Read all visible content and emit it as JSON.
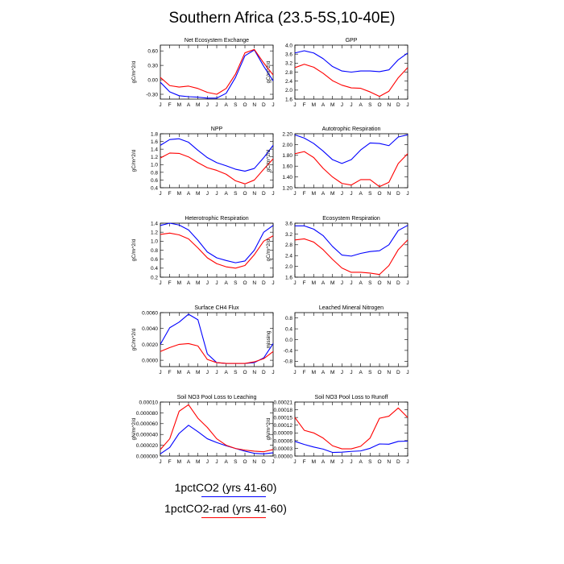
{
  "title": "Southern Africa (23.5-5S,10-40E)",
  "legend": {
    "series1": "1pctCO2 (yrs 41-60)",
    "series2": "1pctCO2-rad (yrs 41-60)"
  },
  "colors": {
    "series1": "#0000ff",
    "series2": "#ff0000"
  },
  "chart_data": [
    {
      "type": "line",
      "title": "Net Ecosystem Exchange",
      "ylabel": "gC/m^2/d",
      "categories": [
        "J",
        "F",
        "M",
        "A",
        "M",
        "J",
        "J",
        "A",
        "S",
        "O",
        "N",
        "D",
        "J"
      ],
      "ylim": [
        -0.4,
        0.72
      ],
      "yticks": [
        "0.60",
        "0.30",
        "0.00",
        "-0.30"
      ],
      "series": [
        {
          "name": "1pctCO2 (yrs 41-60)",
          "values": [
            -0.05,
            -0.25,
            -0.33,
            -0.35,
            -0.36,
            -0.38,
            -0.38,
            -0.28,
            0.05,
            0.5,
            0.62,
            0.28,
            -0.02
          ]
        },
        {
          "name": "1pctCO2-rad (yrs 41-60)",
          "values": [
            0.05,
            -0.12,
            -0.15,
            -0.13,
            -0.18,
            -0.26,
            -0.3,
            -0.18,
            0.12,
            0.56,
            0.63,
            0.35,
            0.1
          ]
        }
      ]
    },
    {
      "type": "line",
      "title": "GPP",
      "ylabel": "gC/m^2/d",
      "categories": [
        "J",
        "F",
        "M",
        "A",
        "M",
        "J",
        "J",
        "A",
        "S",
        "O",
        "N",
        "D",
        "J"
      ],
      "ylim": [
        1.6,
        4.0
      ],
      "yticks": [
        "4.0",
        "3.6",
        "3.2",
        "2.8",
        "2.4",
        "2.0",
        "1.6"
      ],
      "series": [
        {
          "name": "1pctCO2 (yrs 41-60)",
          "values": [
            3.65,
            3.75,
            3.65,
            3.4,
            3.05,
            2.85,
            2.8,
            2.85,
            2.85,
            2.82,
            2.9,
            3.35,
            3.65
          ]
        },
        {
          "name": "1pctCO2-rad (yrs 41-60)",
          "values": [
            3.0,
            3.15,
            3.02,
            2.75,
            2.42,
            2.22,
            2.1,
            2.08,
            1.92,
            1.72,
            1.95,
            2.55,
            3.0
          ]
        }
      ]
    },
    {
      "type": "line",
      "title": "NPP",
      "ylabel": "gC/m^2/d",
      "categories": [
        "J",
        "F",
        "M",
        "A",
        "M",
        "J",
        "J",
        "A",
        "S",
        "O",
        "N",
        "D",
        "J"
      ],
      "ylim": [
        0.4,
        1.8
      ],
      "yticks": [
        "1.8",
        "1.6",
        "1.4",
        "1.2",
        "1.0",
        "0.8",
        "0.6",
        "0.4"
      ],
      "series": [
        {
          "name": "1pctCO2 (yrs 41-60)",
          "values": [
            1.5,
            1.65,
            1.67,
            1.58,
            1.37,
            1.18,
            1.05,
            0.97,
            0.88,
            0.83,
            0.9,
            1.18,
            1.5
          ]
        },
        {
          "name": "1pctCO2-rad (yrs 41-60)",
          "values": [
            1.17,
            1.3,
            1.29,
            1.2,
            1.05,
            0.92,
            0.85,
            0.75,
            0.58,
            0.5,
            0.6,
            0.88,
            1.15
          ]
        }
      ]
    },
    {
      "type": "line",
      "title": "Autotrophic Respiration",
      "ylabel": "gC/m^2/d",
      "categories": [
        "J",
        "F",
        "M",
        "A",
        "M",
        "J",
        "J",
        "A",
        "S",
        "O",
        "N",
        "D",
        "J"
      ],
      "ylim": [
        1.2,
        2.2
      ],
      "yticks": [
        "2.20",
        "2.00",
        "1.80",
        "1.60",
        "1.40",
        "1.20"
      ],
      "series": [
        {
          "name": "1pctCO2 (yrs 41-60)",
          "values": [
            2.18,
            2.12,
            2.02,
            1.88,
            1.72,
            1.65,
            1.72,
            1.9,
            2.03,
            2.02,
            1.98,
            2.14,
            2.18
          ]
        },
        {
          "name": "1pctCO2-rad (yrs 41-60)",
          "values": [
            1.83,
            1.87,
            1.76,
            1.56,
            1.4,
            1.28,
            1.25,
            1.35,
            1.35,
            1.22,
            1.3,
            1.65,
            1.83
          ]
        }
      ]
    },
    {
      "type": "line",
      "title": "Heterotrophic Respiration",
      "ylabel": "gC/m^2/d",
      "categories": [
        "J",
        "F",
        "M",
        "A",
        "M",
        "J",
        "J",
        "A",
        "S",
        "O",
        "N",
        "D",
        "J"
      ],
      "ylim": [
        0.2,
        1.4
      ],
      "yticks": [
        "1.4",
        "1.2",
        "1.0",
        "0.8",
        "0.6",
        "0.4",
        "0.2"
      ],
      "series": [
        {
          "name": "1pctCO2 (yrs 41-60)",
          "values": [
            1.35,
            1.4,
            1.36,
            1.25,
            1.02,
            0.76,
            0.63,
            0.57,
            0.52,
            0.56,
            0.8,
            1.2,
            1.35
          ]
        },
        {
          "name": "1pctCO2-rad (yrs 41-60)",
          "values": [
            1.15,
            1.18,
            1.14,
            1.05,
            0.85,
            0.63,
            0.5,
            0.43,
            0.4,
            0.46,
            0.7,
            1.0,
            1.12
          ]
        }
      ]
    },
    {
      "type": "line",
      "title": "Ecosystem Respiration",
      "ylabel": "gC/m^2/d",
      "categories": [
        "J",
        "F",
        "M",
        "A",
        "M",
        "J",
        "J",
        "A",
        "S",
        "O",
        "N",
        "D",
        "J"
      ],
      "ylim": [
        1.6,
        3.6
      ],
      "yticks": [
        "3.6",
        "3.2",
        "2.8",
        "2.4",
        "2.0",
        "1.6"
      ],
      "series": [
        {
          "name": "1pctCO2 (yrs 41-60)",
          "values": [
            3.5,
            3.5,
            3.38,
            3.14,
            2.74,
            2.42,
            2.38,
            2.48,
            2.55,
            2.58,
            2.8,
            3.33,
            3.52
          ]
        },
        {
          "name": "1pctCO2-rad (yrs 41-60)",
          "values": [
            2.98,
            3.02,
            2.9,
            2.62,
            2.26,
            1.94,
            1.78,
            1.78,
            1.75,
            1.7,
            2.03,
            2.62,
            2.98
          ]
        }
      ]
    },
    {
      "type": "line",
      "title": "Surface CH4 Flux",
      "ylabel": "gC/m^2/d",
      "categories": [
        "J",
        "F",
        "M",
        "A",
        "M",
        "J",
        "J",
        "A",
        "S",
        "O",
        "N",
        "D",
        "J"
      ],
      "ylim": [
        -0.0008,
        0.006
      ],
      "yticks": [
        "0.0060",
        "0.0040",
        "0.0020",
        "0.0000"
      ],
      "series": [
        {
          "name": "1pctCO2 (yrs 41-60)",
          "values": [
            0.002,
            0.0041,
            0.0048,
            0.0058,
            0.0051,
            0.0008,
            -0.0003,
            -0.0004,
            -0.0004,
            -0.0004,
            -0.0003,
            0.0003,
            0.0021
          ]
        },
        {
          "name": "1pctCO2-rad (yrs 41-60)",
          "values": [
            0.0011,
            0.0016,
            0.002,
            0.0021,
            0.0018,
            0.0001,
            -0.0003,
            -0.0004,
            -0.0004,
            -0.0004,
            -0.0002,
            0.0002,
            0.0011
          ]
        }
      ]
    },
    {
      "type": "line",
      "title": "Leached Mineral Nitrogen",
      "ylabel": "missing",
      "categories": [
        "J",
        "F",
        "M",
        "A",
        "M",
        "J",
        "J",
        "A",
        "S",
        "O",
        "N",
        "D",
        "J"
      ],
      "ylim": [
        -1.0,
        1.0
      ],
      "yticks": [
        "0.8",
        "0.4",
        "0.0",
        "-0.4",
        "-0.8"
      ],
      "series": []
    },
    {
      "type": "line",
      "title": "Soil NO3 Pool Loss to Leaching",
      "ylabel": "gN/m^2/d",
      "categories": [
        "J",
        "F",
        "M",
        "A",
        "M",
        "J",
        "J",
        "A",
        "S",
        "O",
        "N",
        "D",
        "J"
      ],
      "ylim": [
        0,
        0.0001
      ],
      "yticks": [
        "0.00010",
        "0.000080",
        "0.000060",
        "0.000040",
        "0.000020",
        "0.000000"
      ],
      "series": [
        {
          "name": "1pctCO2 (yrs 41-60)",
          "values": [
            4e-06,
            1.6e-05,
            4.2e-05,
            5.7e-05,
            4.5e-05,
            3.2e-05,
            2.5e-05,
            1.9e-05,
            1.4e-05,
            9e-06,
            5e-06,
            4e-06,
            6e-06
          ]
        },
        {
          "name": "1pctCO2-rad (yrs 41-60)",
          "values": [
            1.2e-05,
            3.2e-05,
            8.3e-05,
            9.5e-05,
            7e-05,
            5.3e-05,
            3.2e-05,
            2e-05,
            1.4e-05,
            1.1e-05,
            9e-06,
            8e-06,
            1.2e-05
          ]
        }
      ]
    },
    {
      "type": "line",
      "title": "Soil NO3 Pool Loss to Runoff",
      "ylabel": "gN/m^2/d",
      "categories": [
        "J",
        "F",
        "M",
        "A",
        "M",
        "J",
        "J",
        "A",
        "S",
        "O",
        "N",
        "D",
        "J"
      ],
      "ylim": [
        0,
        0.00021
      ],
      "yticks": [
        "0.00021",
        "0.00018",
        "0.00015",
        "0.00012",
        "0.00009",
        "0.00006",
        "0.00003",
        "0.00000"
      ],
      "series": [
        {
          "name": "1pctCO2 (yrs 41-60)",
          "values": [
            5.7e-05,
            4.5e-05,
            3.5e-05,
            2.7e-05,
            1.4e-05,
            1.5e-05,
            1.8e-05,
            2e-05,
            3e-05,
            4.7e-05,
            4.6e-05,
            5.7e-05,
            5.8e-05
          ]
        },
        {
          "name": "1pctCO2-rad (yrs 41-60)",
          "values": [
            0.00015,
            0.0001,
            9e-05,
            7e-05,
            4e-05,
            2.8e-05,
            2.8e-05,
            3.8e-05,
            7e-05,
            0.000147,
            0.000155,
            0.000187,
            0.00015
          ]
        }
      ]
    }
  ]
}
